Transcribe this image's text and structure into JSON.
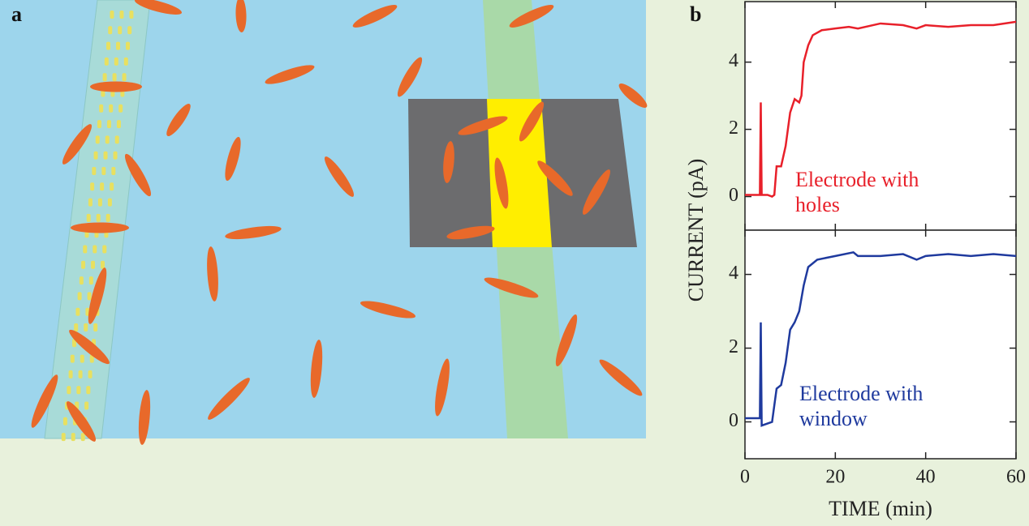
{
  "figure": {
    "panel_a_label": "a",
    "panel_b_label": "b"
  },
  "chart_data": [
    {
      "type": "line",
      "y_label": "CURRENT (pA)",
      "annotation": [
        "Electrode with",
        "holes"
      ],
      "xlim": [
        0,
        60
      ],
      "xticks": [
        0,
        20,
        40,
        60
      ],
      "ylim": [
        -1,
        5.8
      ],
      "yticks": [
        0,
        2,
        4
      ],
      "x": [
        0,
        2,
        3.3,
        3.5,
        3.7,
        5,
        6,
        6.5,
        7,
        8,
        9,
        10,
        11,
        12,
        12.5,
        13,
        14,
        15,
        17,
        20,
        23,
        25,
        30,
        35,
        38,
        40,
        45,
        50,
        55,
        60
      ],
      "series": [
        {
          "name": "Electrode with holes",
          "color": "#e8202a",
          "values": [
            0.05,
            0.05,
            0.05,
            2.8,
            0.05,
            0.05,
            0,
            0.05,
            0.9,
            0.9,
            1.5,
            2.5,
            2.9,
            2.8,
            3.0,
            4.0,
            4.5,
            4.8,
            4.95,
            5.0,
            5.05,
            5.0,
            5.15,
            5.1,
            5.0,
            5.1,
            5.05,
            5.1,
            5.1,
            5.2
          ]
        }
      ]
    },
    {
      "type": "line",
      "x_label": "TIME (min)",
      "annotation": [
        "Electrode with",
        "window"
      ],
      "xlim": [
        0,
        60
      ],
      "xticks": [
        0,
        20,
        40,
        60
      ],
      "ylim": [
        -1,
        5.2
      ],
      "yticks": [
        0,
        2,
        4
      ],
      "x": [
        0,
        3,
        3.3,
        3.5,
        3.7,
        6,
        7,
        8,
        9,
        10,
        11,
        12,
        13,
        14,
        16,
        20,
        24,
        25,
        30,
        35,
        38,
        40,
        45,
        50,
        55,
        60
      ],
      "series": [
        {
          "name": "Electrode with window",
          "color": "#1f3a9e",
          "values": [
            0.1,
            0.1,
            0.1,
            2.7,
            -0.1,
            0,
            0.9,
            1.0,
            1.6,
            2.5,
            2.7,
            3.0,
            3.7,
            4.2,
            4.4,
            4.5,
            4.6,
            4.5,
            4.5,
            4.55,
            4.4,
            4.5,
            4.55,
            4.5,
            4.55,
            4.5
          ]
        }
      ]
    }
  ]
}
